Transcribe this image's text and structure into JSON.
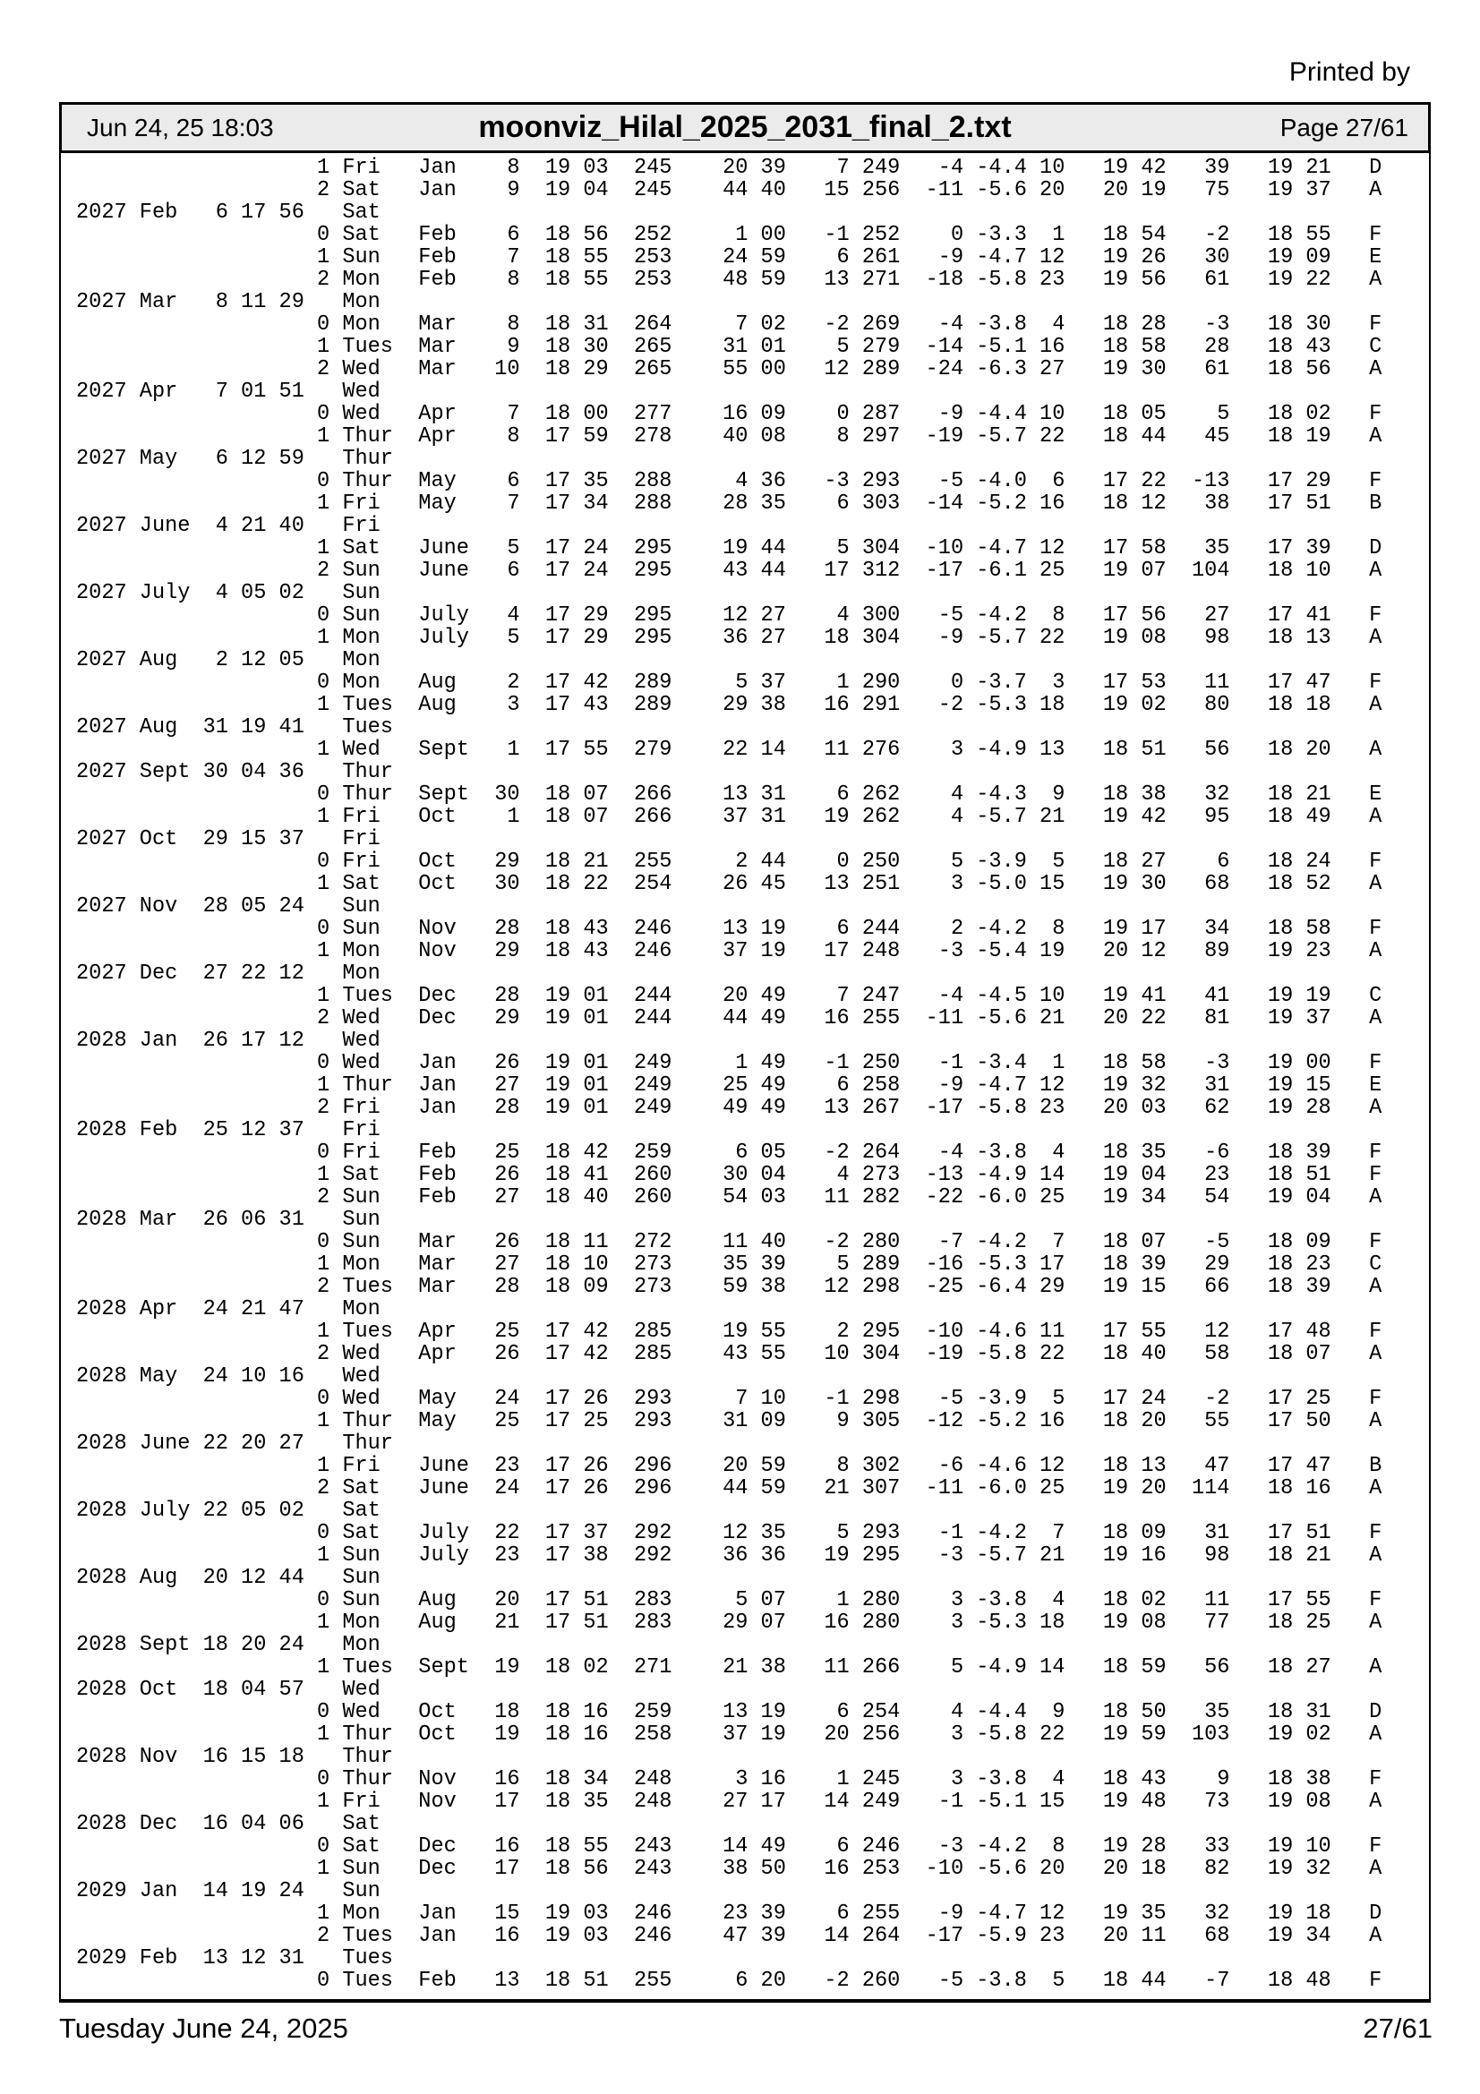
{
  "page": {
    "printed_by": "Printed by",
    "header": {
      "datetime": "Jun 24, 25 18:03",
      "filename": "moonviz_Hilal_2025_2031_final_2.txt",
      "page_label": "Page 27/61"
    },
    "footer": {
      "date": "Tuesday June 24, 2025",
      "page_label": "27/61"
    }
  },
  "content": {
    "lines": [
      "                   1 Fri   Jan    8  19 03  245    20 39    7 249   -4 -4.4 10   19 42   39   19 21   D",
      "                   2 Sat   Jan    9  19 04  245    44 40   15 256  -11 -5.6 20   20 19   75   19 37   A",
      "2027 Feb   6 17 56   Sat",
      "                   0 Sat   Feb    6  18 56  252     1 00   -1 252    0 -3.3  1   18 54   -2   18 55   F",
      "                   1 Sun   Feb    7  18 55  253    24 59    6 261   -9 -4.7 12   19 26   30   19 09   E",
      "                   2 Mon   Feb    8  18 55  253    48 59   13 271  -18 -5.8 23   19 56   61   19 22   A",
      "2027 Mar   8 11 29   Mon",
      "                   0 Mon   Mar    8  18 31  264     7 02   -2 269   -4 -3.8  4   18 28   -3   18 30   F",
      "                   1 Tues  Mar    9  18 30  265    31 01    5 279  -14 -5.1 16   18 58   28   18 43   C",
      "                   2 Wed   Mar   10  18 29  265    55 00   12 289  -24 -6.3 27   19 30   61   18 56   A",
      "2027 Apr   7 01 51   Wed",
      "                   0 Wed   Apr    7  18 00  277    16 09    0 287   -9 -4.4 10   18 05    5   18 02   F",
      "                   1 Thur  Apr    8  17 59  278    40 08    8 297  -19 -5.7 22   18 44   45   18 19   A",
      "2027 May   6 12 59   Thur",
      "                   0 Thur  May    6  17 35  288     4 36   -3 293   -5 -4.0  6   17 22  -13   17 29   F",
      "                   1 Fri   May    7  17 34  288    28 35    6 303  -14 -5.2 16   18 12   38   17 51   B",
      "2027 June  4 21 40   Fri",
      "                   1 Sat   June   5  17 24  295    19 44    5 304  -10 -4.7 12   17 58   35   17 39   D",
      "                   2 Sun   June   6  17 24  295    43 44   17 312  -17 -6.1 25   19 07  104   18 10   A",
      "2027 July  4 05 02   Sun",
      "                   0 Sun   July   4  17 29  295    12 27    4 300   -5 -4.2  8   17 56   27   17 41   F",
      "                   1 Mon   July   5  17 29  295    36 27   18 304   -9 -5.7 22   19 08   98   18 13   A",
      "2027 Aug   2 12 05   Mon",
      "                   0 Mon   Aug    2  17 42  289     5 37    1 290    0 -3.7  3   17 53   11   17 47   F",
      "                   1 Tues  Aug    3  17 43  289    29 38   16 291   -2 -5.3 18   19 02   80   18 18   A",
      "2027 Aug  31 19 41   Tues",
      "                   1 Wed   Sept   1  17 55  279    22 14   11 276    3 -4.9 13   18 51   56   18 20   A",
      "2027 Sept 30 04 36   Thur",
      "                   0 Thur  Sept  30  18 07  266    13 31    6 262    4 -4.3  9   18 38   32   18 21   E",
      "                   1 Fri   Oct    1  18 07  266    37 31   19 262    4 -5.7 21   19 42   95   18 49   A",
      "2027 Oct  29 15 37   Fri",
      "                   0 Fri   Oct   29  18 21  255     2 44    0 250    5 -3.9  5   18 27    6   18 24   F",
      "                   1 Sat   Oct   30  18 22  254    26 45   13 251    3 -5.0 15   19 30   68   18 52   A",
      "2027 Nov  28 05 24   Sun",
      "                   0 Sun   Nov   28  18 43  246    13 19    6 244    2 -4.2  8   19 17   34   18 58   F",
      "                   1 Mon   Nov   29  18 43  246    37 19   17 248   -3 -5.4 19   20 12   89   19 23   A",
      "2027 Dec  27 22 12   Mon",
      "                   1 Tues  Dec   28  19 01  244    20 49    7 247   -4 -4.5 10   19 41   41   19 19   C",
      "                   2 Wed   Dec   29  19 01  244    44 49   16 255  -11 -5.6 21   20 22   81   19 37   A",
      "2028 Jan  26 17 12   Wed",
      "                   0 Wed   Jan   26  19 01  249     1 49   -1 250   -1 -3.4  1   18 58   -3   19 00   F",
      "                   1 Thur  Jan   27  19 01  249    25 49    6 258   -9 -4.7 12   19 32   31   19 15   E",
      "                   2 Fri   Jan   28  19 01  249    49 49   13 267  -17 -5.8 23   20 03   62   19 28   A",
      "2028 Feb  25 12 37   Fri",
      "                   0 Fri   Feb   25  18 42  259     6 05   -2 264   -4 -3.8  4   18 35   -6   18 39   F",
      "                   1 Sat   Feb   26  18 41  260    30 04    4 273  -13 -4.9 14   19 04   23   18 51   F",
      "                   2 Sun   Feb   27  18 40  260    54 03   11 282  -22 -6.0 25   19 34   54   19 04   A",
      "2028 Mar  26 06 31   Sun",
      "                   0 Sun   Mar   26  18 11  272    11 40   -2 280   -7 -4.2  7   18 07   -5   18 09   F",
      "                   1 Mon   Mar   27  18 10  273    35 39    5 289  -16 -5.3 17   18 39   29   18 23   C",
      "                   2 Tues  Mar   28  18 09  273    59 38   12 298  -25 -6.4 29   19 15   66   18 39   A",
      "2028 Apr  24 21 47   Mon",
      "                   1 Tues  Apr   25  17 42  285    19 55    2 295  -10 -4.6 11   17 55   12   17 48   F",
      "                   2 Wed   Apr   26  17 42  285    43 55   10 304  -19 -5.8 22   18 40   58   18 07   A",
      "2028 May  24 10 16   Wed",
      "                   0 Wed   May   24  17 26  293     7 10   -1 298   -5 -3.9  5   17 24   -2   17 25   F",
      "                   1 Thur  May   25  17 25  293    31 09    9 305  -12 -5.2 16   18 20   55   17 50   A",
      "2028 June 22 20 27   Thur",
      "                   1 Fri   June  23  17 26  296    20 59    8 302   -6 -4.6 12   18 13   47   17 47   B",
      "                   2 Sat   June  24  17 26  296    44 59   21 307  -11 -6.0 25   19 20  114   18 16   A",
      "2028 July 22 05 02   Sat",
      "                   0 Sat   July  22  17 37  292    12 35    5 293   -1 -4.2  7   18 09   31   17 51   F",
      "                   1 Sun   July  23  17 38  292    36 36   19 295   -3 -5.7 21   19 16   98   18 21   A",
      "2028 Aug  20 12 44   Sun",
      "                   0 Sun   Aug   20  17 51  283     5 07    1 280    3 -3.8  4   18 02   11   17 55   F",
      "                   1 Mon   Aug   21  17 51  283    29 07   16 280    3 -5.3 18   19 08   77   18 25   A",
      "2028 Sept 18 20 24   Mon",
      "                   1 Tues  Sept  19  18 02  271    21 38   11 266    5 -4.9 14   18 59   56   18 27   A",
      "2028 Oct  18 04 57   Wed",
      "                   0 Wed   Oct   18  18 16  259    13 19    6 254    4 -4.4  9   18 50   35   18 31   D",
      "                   1 Thur  Oct   19  18 16  258    37 19   20 256    3 -5.8 22   19 59  103   19 02   A",
      "2028 Nov  16 15 18   Thur",
      "                   0 Thur  Nov   16  18 34  248     3 16    1 245    3 -3.8  4   18 43    9   18 38   F",
      "                   1 Fri   Nov   17  18 35  248    27 17   14 249   -1 -5.1 15   19 48   73   19 08   A",
      "2028 Dec  16 04 06   Sat",
      "                   0 Sat   Dec   16  18 55  243    14 49    6 246   -3 -4.2  8   19 28   33   19 10   F",
      "                   1 Sun   Dec   17  18 56  243    38 50   16 253  -10 -5.6 20   20 18   82   19 32   A",
      "2029 Jan  14 19 24   Sun",
      "                   1 Mon   Jan   15  19 03  246    23 39    6 255   -9 -4.7 12   19 35   32   19 18   D",
      "                   2 Tues  Jan   16  19 03  246    47 39   14 264  -17 -5.9 23   20 11   68   19 34   A",
      "2029 Feb  13 12 31   Tues",
      "                   0 Tues  Feb   13  18 51  255     6 20   -2 260   -5 -3.8  5   18 44   -7   18 48   F"
    ]
  }
}
